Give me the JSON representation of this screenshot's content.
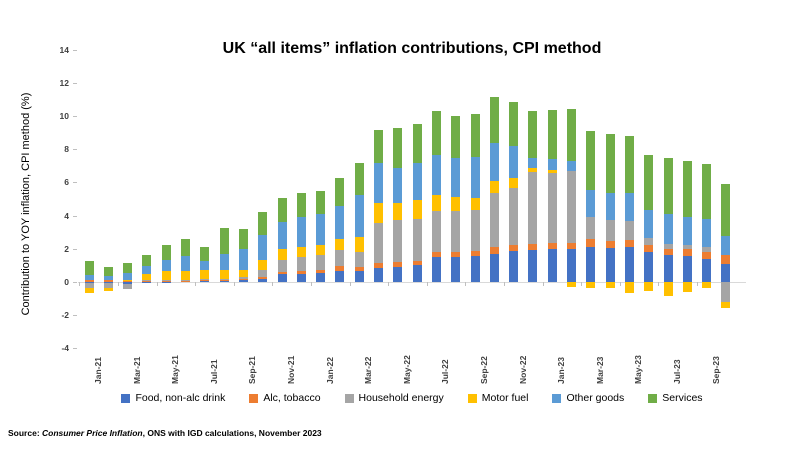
{
  "title": "UK “all items” inflation contributions, CPI method",
  "y_axis_title": "Contribution to YOY inflation, CPI method (%)",
  "source": {
    "prefix": "Source: ",
    "italic_part": "Consumer Price Inflation",
    "suffix": ", ONS with IGD calculations, November 2023"
  },
  "chart_data": {
    "type": "bar",
    "stacked": true,
    "title": "UK “all items” inflation contributions, CPI method",
    "xlabel": "",
    "ylabel": "Contribution to YOY inflation, CPI method (%)",
    "ylim": [
      -4,
      14
    ],
    "yticks": [
      14,
      12,
      10,
      8,
      6,
      4,
      2,
      0,
      -2,
      -4
    ],
    "grid": "zero-line-only",
    "legend_position": "bottom",
    "categories": [
      "Jan-21",
      "Feb-21",
      "Mar-21",
      "Apr-21",
      "May-21",
      "Jun-21",
      "Jul-21",
      "Aug-21",
      "Sep-21",
      "Oct-21",
      "Nov-21",
      "Dec-21",
      "Jan-22",
      "Feb-22",
      "Mar-22",
      "Apr-22",
      "May-22",
      "Jun-22",
      "Jul-22",
      "Aug-22",
      "Sep-22",
      "Oct-22",
      "Nov-22",
      "Dec-22",
      "Jan-23",
      "Feb-23",
      "Mar-23",
      "Apr-23",
      "May-23",
      "Jun-23",
      "Jul-23",
      "Aug-23",
      "Sep-23",
      "Oct-23"
    ],
    "x_tick_labels_shown": [
      "Jan-21",
      "Mar-21",
      "May-21",
      "Jul-21",
      "Sep-21",
      "Nov-21",
      "Jan-22",
      "Mar-22",
      "May-22",
      "Jul-22",
      "Sep-22",
      "Nov-22",
      "Jan-23",
      "Mar-23",
      "May-23",
      "Jul-23",
      "Sep-23"
    ],
    "series": [
      {
        "name": "Food, non-alc drink",
        "color": "#4472C4",
        "values": [
          -0.05,
          -0.1,
          -0.12,
          -0.08,
          -0.05,
          0.02,
          0.05,
          0.06,
          0.08,
          0.14,
          0.45,
          0.47,
          0.53,
          0.67,
          0.63,
          0.85,
          0.91,
          1.0,
          1.49,
          1.5,
          1.55,
          1.7,
          1.85,
          1.93,
          1.95,
          1.95,
          2.09,
          2.05,
          2.1,
          1.8,
          1.6,
          1.55,
          1.4,
          1.1
        ]
      },
      {
        "name": "Alc, tobacco",
        "color": "#ED7D31",
        "values": [
          0.08,
          0.08,
          0.08,
          0.06,
          0.06,
          0.05,
          0.05,
          0.06,
          0.1,
          0.12,
          0.16,
          0.2,
          0.2,
          0.27,
          0.28,
          0.28,
          0.26,
          0.27,
          0.3,
          0.3,
          0.32,
          0.38,
          0.35,
          0.37,
          0.4,
          0.37,
          0.5,
          0.4,
          0.4,
          0.4,
          0.4,
          0.4,
          0.4,
          0.5
        ]
      },
      {
        "name": "Household energy",
        "color": "#A5A5A5",
        "values": [
          -0.35,
          -0.3,
          -0.3,
          0.06,
          0.06,
          0.06,
          0.06,
          0.06,
          0.09,
          0.45,
          0.73,
          0.82,
          0.86,
          0.96,
          0.87,
          2.45,
          2.54,
          2.54,
          2.48,
          2.45,
          2.45,
          3.3,
          3.46,
          4.31,
          4.2,
          4.37,
          1.32,
          1.3,
          1.15,
          0.45,
          0.3,
          0.3,
          0.3,
          -1.2
        ]
      },
      {
        "name": "Motor fuel",
        "color": "#FFC000",
        "values": [
          -0.3,
          -0.15,
          0.05,
          0.33,
          0.52,
          0.55,
          0.55,
          0.55,
          0.45,
          0.63,
          0.61,
          0.61,
          0.65,
          0.71,
          0.91,
          1.2,
          1.02,
          1.15,
          0.97,
          0.85,
          0.75,
          0.7,
          0.61,
          0.26,
          0.2,
          -0.3,
          -0.35,
          -0.35,
          -0.65,
          -0.55,
          -0.85,
          -0.6,
          -0.4,
          -0.4
        ]
      },
      {
        "name": "Other goods",
        "color": "#5B9BD5",
        "values": [
          0.35,
          0.27,
          0.38,
          0.5,
          0.68,
          0.88,
          0.55,
          0.95,
          1.27,
          1.47,
          1.67,
          1.84,
          1.84,
          1.94,
          2.54,
          2.4,
          2.13,
          2.2,
          2.44,
          2.4,
          2.48,
          2.3,
          1.93,
          0.61,
          0.64,
          0.61,
          1.63,
          1.63,
          1.73,
          1.7,
          1.8,
          1.65,
          1.7,
          1.15
        ]
      },
      {
        "name": "Services",
        "color": "#70AD47",
        "values": [
          0.8,
          0.52,
          0.62,
          0.68,
          0.93,
          1.02,
          0.85,
          1.58,
          1.18,
          1.42,
          1.47,
          1.43,
          1.43,
          1.69,
          1.93,
          2.0,
          2.45,
          2.4,
          2.61,
          2.5,
          2.57,
          2.8,
          2.64,
          2.85,
          3.0,
          3.15,
          3.56,
          3.55,
          3.4,
          3.3,
          3.4,
          3.4,
          3.3,
          3.15
        ]
      }
    ]
  }
}
